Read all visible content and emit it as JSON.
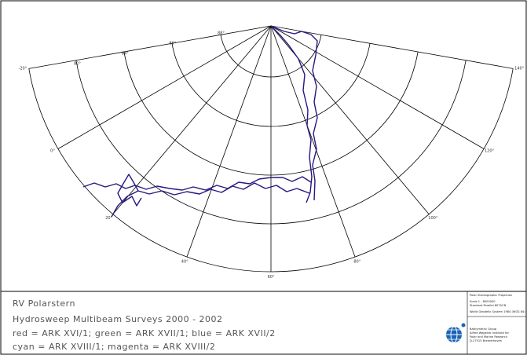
{
  "legend": {
    "title": "RV Polarstern",
    "subtitle": "Hydrosweep Multibeam Surveys 2000 - 2002",
    "lines": [
      "red = ARK XVI/1; green = ARK XVII/1; blue = ARK XVII/2",
      "cyan = ARK XVIII/1; magenta = ARK XVIII/2"
    ]
  },
  "info": {
    "projection": "Polar Stereographic Projection",
    "scale": "Scale      1 : 6000000",
    "parallel": "Standard Parallel   80°00'N",
    "datum": "World Geodetic System 1984  (WGS 84)",
    "institute": [
      "Bathymetric Group",
      "Alfred Wegener Institute for",
      "Polar and Marine Research",
      "D-27515 Bremerhaven"
    ]
  },
  "graticule": {
    "meridian_labels": [
      "-20°",
      "0°",
      "20°",
      "40°",
      "60°",
      "80°",
      "100°",
      "120°",
      "140°"
    ],
    "parallel_labels": [
      "88°",
      "86°",
      "84°",
      "82°"
    ]
  }
}
